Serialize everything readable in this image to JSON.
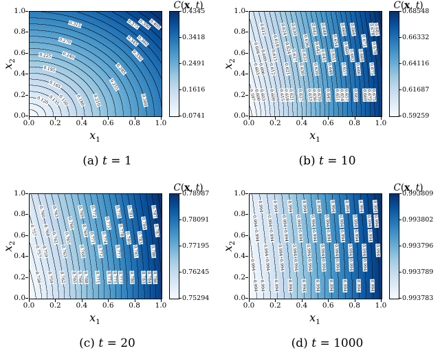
{
  "figure": {
    "background": "#ffffff",
    "colormap": {
      "name": "Blues",
      "stops": [
        "#f7fbff",
        "#deebf7",
        "#c6dbef",
        "#9ecae1",
        "#6baed6",
        "#4292c6",
        "#2171b5",
        "#08519c",
        "#08306b"
      ]
    },
    "contour_line_color": "#000000",
    "text_color": "#000000"
  },
  "chart_data": {
    "type": "heatmap",
    "subtype": "filled-contour",
    "description": "Filled contour plots of the field C(x,t) over the unit square at four times t = 1, 10, 20, 1000, each with a Blues colorbar and labeled contour lines",
    "plots": [
      {
        "id": "a",
        "caption": {
          "prefix": "(a)",
          "symbol": "t",
          "rest": "= 1"
        },
        "xlabel": {
          "base": "x",
          "sub": "1"
        },
        "ylabel": {
          "base": "x",
          "sub": "2"
        },
        "x_ticks": [
          "0.0",
          "0.2",
          "0.4",
          "0.6",
          "0.8",
          "1.0"
        ],
        "y_ticks": [
          "1.0",
          "0.8",
          "0.6",
          "0.4",
          "0.2",
          "0.0"
        ],
        "xlim": [
          0,
          1
        ],
        "ylim": [
          0,
          1
        ],
        "vmin": 0.0741,
        "vmax": 0.4345,
        "colorbar": {
          "title": [
            {
              "t": "C",
              "s": "i"
            },
            {
              "t": "(",
              "s": "p"
            },
            {
              "t": "x",
              "s": "b"
            },
            {
              "t": ", ",
              "s": "p"
            },
            {
              "t": "t",
              "s": "i"
            },
            {
              "t": ")",
              "s": "p"
            }
          ],
          "tick_labels": [
            "0.4345",
            "0.3418",
            "0.2491",
            "0.1616",
            "0.0741"
          ]
        },
        "field": {
          "type": "radial"
        },
        "levels": [
          0.09,
          0.105,
          0.12,
          0.135,
          0.15,
          0.165,
          0.18,
          0.195,
          0.21,
          0.225,
          0.24,
          0.255,
          0.27,
          0.285,
          0.3,
          0.315,
          0.33,
          0.345,
          0.36,
          0.375,
          0.39,
          0.405,
          0.42
        ],
        "label_decimals": 3,
        "labels_per_line": 1,
        "label_ys": [
          0.72,
          0.45,
          0.15,
          0.88,
          0.58,
          0.3
        ]
      },
      {
        "id": "b",
        "caption": {
          "prefix": "(b)",
          "symbol": "t",
          "rest": "= 10"
        },
        "xlabel": {
          "base": "x",
          "sub": "1"
        },
        "ylabel": {
          "base": "x",
          "sub": "2"
        },
        "x_ticks": [
          "0.0",
          "0.2",
          "0.4",
          "0.6",
          "0.8",
          "1.0"
        ],
        "y_ticks": [
          "1.0",
          "0.8",
          "0.6",
          "0.4",
          "0.2",
          "0.0"
        ],
        "xlim": [
          0,
          1
        ],
        "ylim": [
          0,
          1
        ],
        "vmin": 0.59259,
        "vmax": 0.68548,
        "colorbar": {
          "title": [
            {
              "t": "C",
              "s": "i"
            },
            {
              "t": "(",
              "s": "p"
            },
            {
              "t": "x",
              "s": "b"
            },
            {
              "t": ", ",
              "s": "p"
            },
            {
              "t": "t",
              "s": "i"
            },
            {
              "t": ")",
              "s": "p"
            }
          ],
          "tick_labels": [
            "0.68548",
            "0.66332",
            "0.64116",
            "0.61687",
            "0.59259"
          ]
        },
        "field": {
          "type": "axial",
          "curve": 0.22
        },
        "levels": [
          0.594,
          0.597,
          0.6,
          0.603,
          0.606,
          0.609,
          0.612,
          0.615,
          0.618,
          0.621,
          0.624,
          0.627,
          0.63,
          0.633,
          0.636,
          0.639,
          0.642,
          0.645,
          0.648,
          0.651,
          0.654,
          0.657,
          0.66,
          0.663,
          0.666,
          0.669,
          0.672,
          0.675,
          0.678,
          0.681,
          0.684
        ],
        "label_decimals": 3,
        "labels_per_line": 2,
        "label_ys": [
          0.83,
          0.58,
          0.72,
          0.45,
          0.65,
          0.2
        ]
      },
      {
        "id": "c",
        "caption": {
          "prefix": "(c)",
          "symbol": "t",
          "rest": "= 20"
        },
        "xlabel": {
          "base": "x",
          "sub": "1"
        },
        "ylabel": {
          "base": "x",
          "sub": "2"
        },
        "x_ticks": [
          "0.0",
          "0.2",
          "0.4",
          "0.6",
          "0.8",
          "1.0"
        ],
        "y_ticks": [
          "1.0",
          "0.8",
          "0.6",
          "0.4",
          "0.2",
          "0.0"
        ],
        "xlim": [
          0,
          1
        ],
        "ylim": [
          0,
          1
        ],
        "vmin": 0.75294,
        "vmax": 0.78987,
        "colorbar": {
          "title": [
            {
              "t": "C",
              "s": "i"
            },
            {
              "t": "(",
              "s": "p"
            },
            {
              "t": "x",
              "s": "b"
            },
            {
              "t": ", ",
              "s": "p"
            },
            {
              "t": "t",
              "s": "i"
            },
            {
              "t": ")",
              "s": "p"
            }
          ],
          "tick_labels": [
            "0.78987",
            "0.78091",
            "0.77195",
            "0.76245",
            "0.75294"
          ]
        },
        "field": {
          "type": "axial",
          "curve": 0.22
        },
        "levels": [
          0.7545,
          0.756,
          0.7575,
          0.759,
          0.7605,
          0.762,
          0.7635,
          0.765,
          0.7665,
          0.768,
          0.7695,
          0.771,
          0.7725,
          0.774,
          0.7755,
          0.777,
          0.7785,
          0.78,
          0.7815,
          0.783,
          0.7845,
          0.786,
          0.7875,
          0.789
        ],
        "label_decimals": 3,
        "labels_per_line": 2,
        "label_ys": [
          0.83,
          0.58,
          0.72,
          0.45,
          0.65,
          0.2
        ]
      },
      {
        "id": "d",
        "caption": {
          "prefix": "(d)",
          "symbol": "t",
          "rest": "= 1000"
        },
        "xlabel": {
          "base": "x",
          "sub": "1"
        },
        "ylabel": {
          "base": "x",
          "sub": "2"
        },
        "x_ticks": [
          "0.0",
          "0.2",
          "0.4",
          "0.6",
          "0.8",
          "1.0"
        ],
        "y_ticks": [
          "1.0",
          "0.8",
          "0.6",
          "0.4",
          "0.2",
          "0.0"
        ],
        "xlim": [
          0,
          1
        ],
        "ylim": [
          0,
          1
        ],
        "vmin": 0.993783,
        "vmax": 0.993809,
        "colorbar": {
          "title": [
            {
              "t": "C",
              "s": "i"
            },
            {
              "t": "(",
              "s": "p"
            },
            {
              "t": "x",
              "s": "b"
            },
            {
              "t": ", ",
              "s": "p"
            },
            {
              "t": "t",
              "s": "i"
            },
            {
              "t": ")",
              "s": "p"
            }
          ],
          "tick_labels": [
            "0.993809",
            "0.993802",
            "0.993796",
            "0.993789",
            "0.993783"
          ]
        },
        "field": {
          "type": "axial",
          "curve": 0.12
        },
        "levels": [
          0.9937843,
          0.9937856,
          0.9937869,
          0.9937882,
          0.9937895,
          0.9937908,
          0.9937921,
          0.9937934,
          0.9937947,
          0.993796,
          0.9937973,
          0.9937986,
          0.9937999,
          0.9938012,
          0.9938025,
          0.9938038,
          0.9938051,
          0.9938064,
          0.9938077
        ],
        "label_decimals": 3,
        "labels_per_line": 3,
        "label_ys": [
          0.88,
          0.6,
          0.32,
          0.74,
          0.46,
          0.12
        ]
      }
    ]
  }
}
